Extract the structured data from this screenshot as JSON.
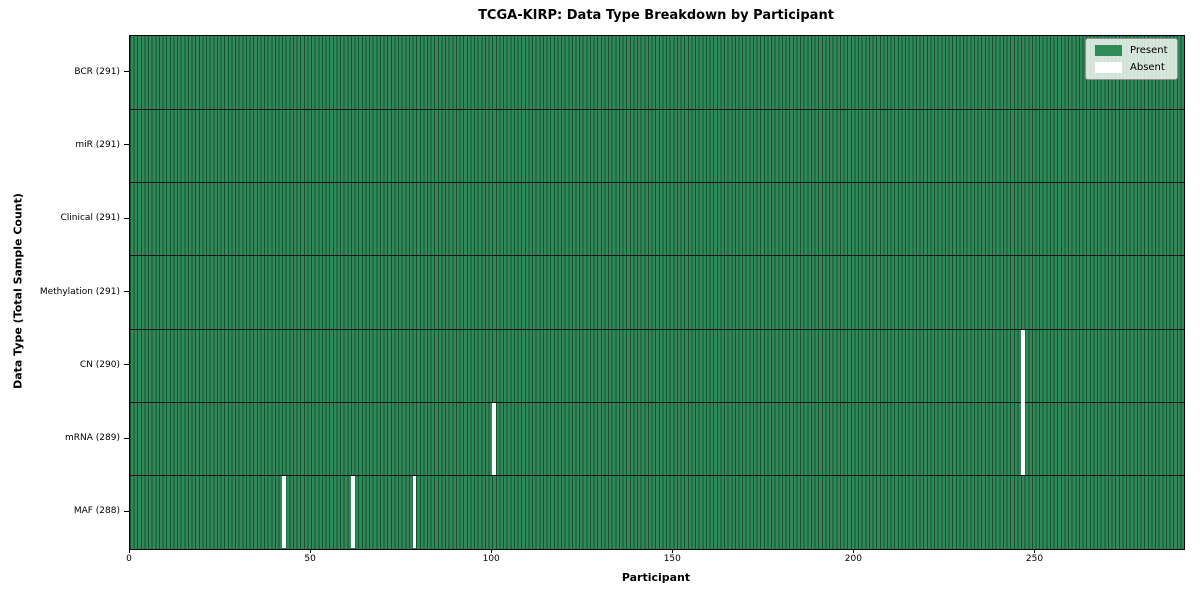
{
  "chart_data": {
    "type": "heatmap",
    "title": "TCGA-KIRP: Data Type Breakdown by Participant",
    "xlabel": "Participant",
    "ylabel": "Data Type (Total Sample Count)",
    "xlim": [
      0,
      291
    ],
    "n_participants": 291,
    "x_ticks": [
      0,
      50,
      100,
      150,
      200,
      250
    ],
    "grid": false,
    "rows": [
      {
        "label": "BCR (291)",
        "data_type": "BCR",
        "total_samples": 291,
        "absent_participants": []
      },
      {
        "label": "miR (291)",
        "data_type": "miR",
        "total_samples": 291,
        "absent_participants": []
      },
      {
        "label": "Clinical (291)",
        "data_type": "Clinical",
        "total_samples": 291,
        "absent_participants": []
      },
      {
        "label": "Methylation (291)",
        "data_type": "Methylation",
        "total_samples": 291,
        "absent_participants": []
      },
      {
        "label": "CN (290)",
        "data_type": "CN",
        "total_samples": 290,
        "absent_participants": [
          246
        ]
      },
      {
        "label": "mRNA (289)",
        "data_type": "mRNA",
        "total_samples": 289,
        "absent_participants": [
          100,
          246
        ]
      },
      {
        "label": "MAF (288)",
        "data_type": "MAF",
        "total_samples": 288,
        "absent_participants": [
          42,
          61,
          78
        ]
      }
    ],
    "legend": {
      "position": "upper right",
      "entries": [
        {
          "label": "Present",
          "color": "#2e8b57"
        },
        {
          "label": "Absent",
          "color": "#ffffff"
        }
      ]
    },
    "colors": {
      "present_fill": "#2e8b57",
      "bar_edge": "#1e4c35",
      "absent_fill": "#ffffff",
      "row_divider": "#151515",
      "axes_edge": "#000000",
      "background": "#ffffff"
    }
  }
}
